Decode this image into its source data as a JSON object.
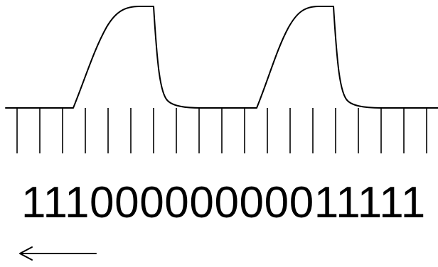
{
  "bit_sequence": "11100000000011111",
  "colors": {
    "stroke": "#000000",
    "background": "#ffffff"
  }
}
